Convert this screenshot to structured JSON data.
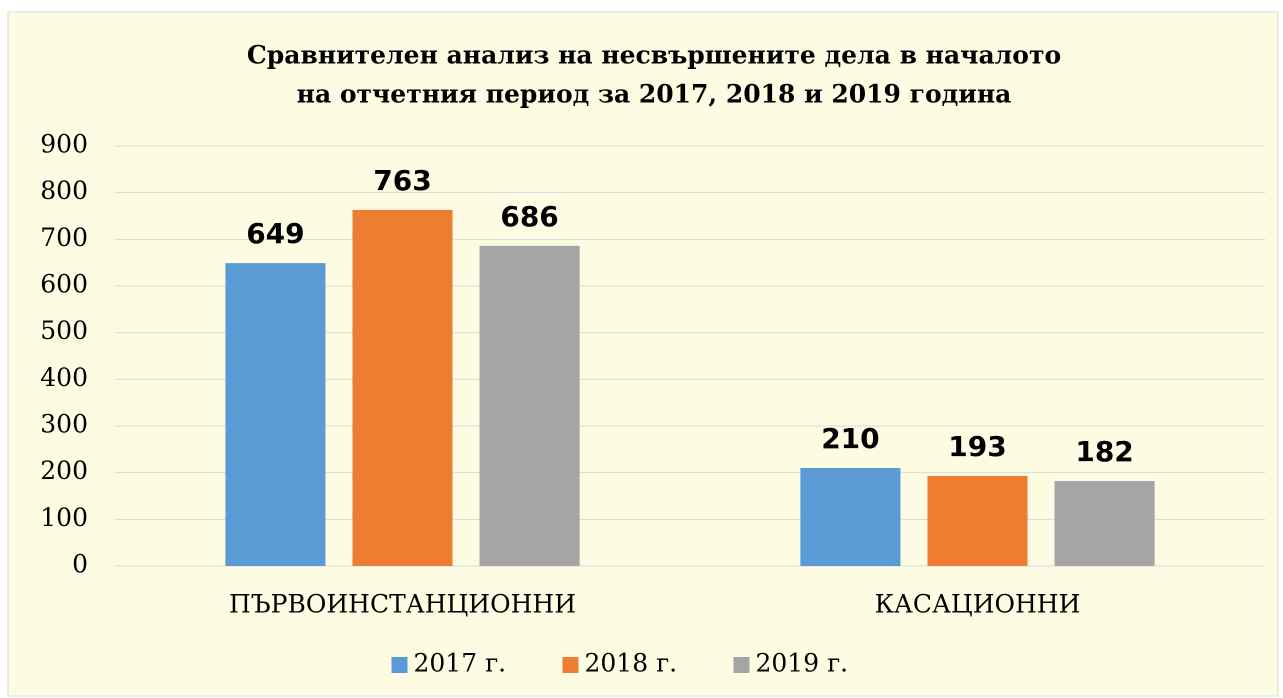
{
  "chart_data": {
    "type": "bar",
    "title": [
      "Сравнителен анализ на несвършените дела в началото",
      "на отчетния период за 2017, 2018 и 2019 година"
    ],
    "categories": [
      "ПЪРВОИНСТАНЦИОННИ",
      "КАСАЦИОННИ"
    ],
    "series": [
      {
        "name": "2017 г.",
        "color": "#5b9bd5",
        "values": [
          649,
          210
        ]
      },
      {
        "name": "2018 г.",
        "color": "#ed7d31",
        "values": [
          763,
          193
        ]
      },
      {
        "name": "2019 г.",
        "color": "#a5a5a5",
        "values": [
          686,
          182
        ]
      }
    ],
    "ylim": [
      0,
      900
    ],
    "yticks": [
      0,
      100,
      200,
      300,
      400,
      500,
      600,
      700,
      800,
      900
    ],
    "grid": true,
    "legend": "bottom"
  }
}
